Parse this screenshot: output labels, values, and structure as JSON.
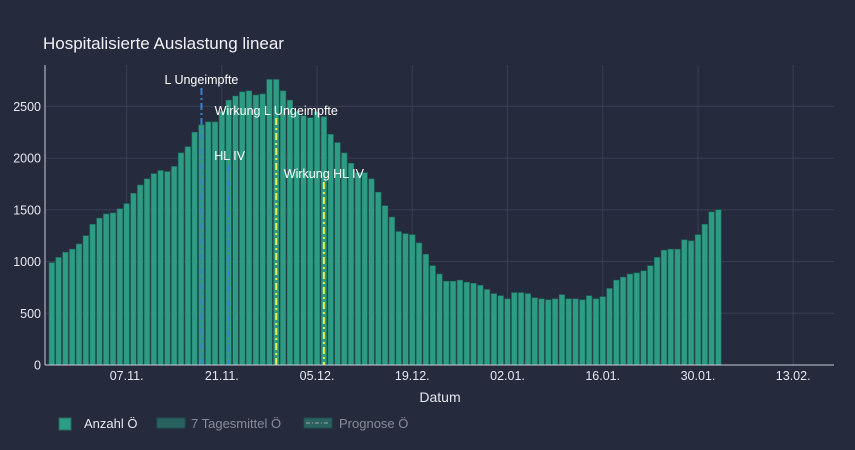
{
  "chart_data": {
    "type": "bar",
    "title": "Hospitalisierte Auslastung linear",
    "xlabel": "Datum",
    "ylabel": "",
    "ylim": [
      0,
      2900
    ],
    "yticks": [
      0,
      500,
      1000,
      1500,
      2000,
      2500
    ],
    "ytick_labels": [
      "0",
      "500",
      "1000",
      "1500",
      "2000",
      "2500"
    ],
    "x_start": "2021-10-26",
    "x_end": "2022-02-19",
    "xticks": [
      "2021-11-07",
      "2021-11-21",
      "2021-12-05",
      "2021-12-19",
      "2022-01-02",
      "2022-01-16",
      "2022-01-30",
      "2022-02-13"
    ],
    "xtick_labels": [
      "07.11.",
      "21.11.",
      "05.12.",
      "19.12.",
      "02.01.",
      "16.01.",
      "30.01.",
      "13.02."
    ],
    "grid": true,
    "legend_position": "bottom-left",
    "bar_color": "#2e9c83",
    "bar_edge_color": "#1f6e5e",
    "series": [
      {
        "name": "Anzahl Ö",
        "start_date": "2021-10-27",
        "values": [
          990,
          1040,
          1090,
          1120,
          1170,
          1250,
          1360,
          1420,
          1460,
          1470,
          1510,
          1560,
          1660,
          1740,
          1800,
          1850,
          1880,
          1870,
          1920,
          2050,
          2110,
          2250,
          2320,
          2350,
          2350,
          2450,
          2560,
          2600,
          2640,
          2650,
          2610,
          2620,
          2760,
          2760,
          2650,
          2560,
          2450,
          2410,
          2390,
          2450,
          2400,
          2230,
          2150,
          2050,
          1950,
          1860,
          1860,
          1800,
          1670,
          1540,
          1430,
          1290,
          1270,
          1260,
          1180,
          1070,
          960,
          880,
          810,
          810,
          820,
          800,
          790,
          770,
          730,
          690,
          670,
          640,
          700,
          700,
          690,
          650,
          640,
          630,
          640,
          680,
          640,
          640,
          630,
          670,
          640,
          660,
          740,
          820,
          850,
          880,
          890,
          910,
          960,
          1040,
          1110,
          1120,
          1120,
          1210,
          1200,
          1260,
          1360,
          1480,
          1500
        ]
      },
      {
        "name": "7 Tagesmittel Ö"
      },
      {
        "name": "Prognose Ö"
      }
    ],
    "vlines": [
      {
        "date": "2021-11-18",
        "label": "L Ungeimpfte",
        "color": "#3a7fd0",
        "style": "dashdot"
      },
      {
        "date": "2021-11-22",
        "label": "HL IV",
        "color": "#3a7fd0",
        "style": "dashdot"
      },
      {
        "date": "2021-11-29",
        "label": "Wirkung L Ungeimpfte",
        "color": "#e8f04a",
        "style": "dashdot"
      },
      {
        "date": "2021-12-06",
        "label": "Wirkung HL IV",
        "color": "#e8f04a",
        "style": "dashdot"
      }
    ]
  }
}
